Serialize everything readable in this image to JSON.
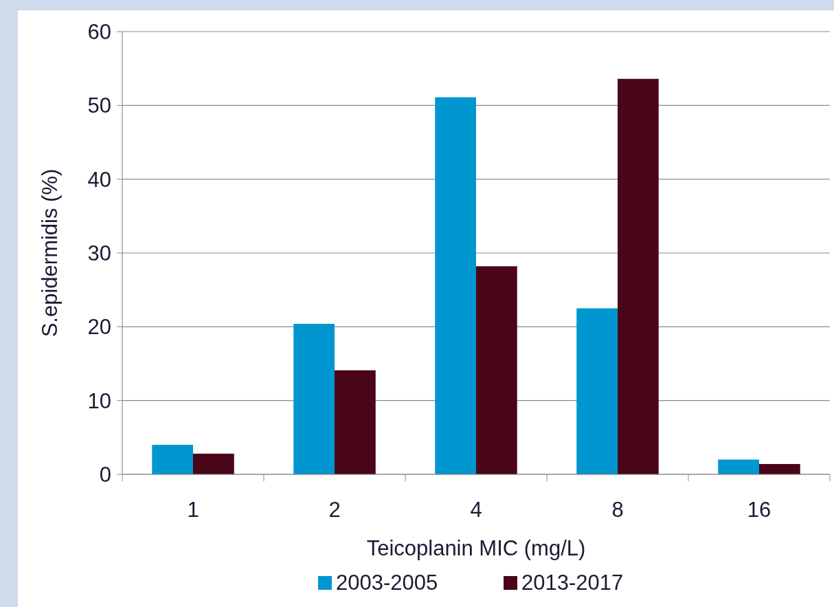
{
  "chart_data": {
    "type": "bar",
    "xlabel": "Teicoplanin MIC (mg/L)",
    "ylabel": "S.epidermidis (%)",
    "categories": [
      "1",
      "2",
      "4",
      "8",
      "16"
    ],
    "series": [
      {
        "name": "2003-2005",
        "color": "#0096cf",
        "values": [
          4.0,
          20.4,
          51.1,
          22.5,
          2.0
        ]
      },
      {
        "name": "2013-2017",
        "color": "#4a0618",
        "values": [
          2.8,
          14.1,
          28.2,
          53.6,
          1.4
        ]
      }
    ],
    "ylim": [
      0,
      60
    ],
    "yticks": [
      0,
      10,
      20,
      30,
      40,
      50,
      60
    ],
    "grid": "y",
    "legend": "bottom"
  }
}
